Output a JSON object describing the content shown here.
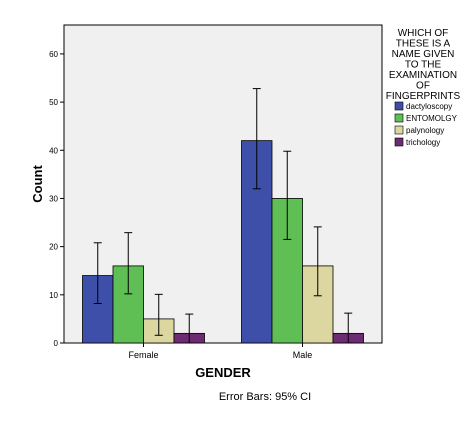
{
  "chart_data": {
    "type": "bar",
    "xlabel": "GENDER",
    "ylabel": "Count",
    "categories": [
      "Female",
      "Male"
    ],
    "ylim": [
      0,
      66
    ],
    "yticks": [
      0,
      10,
      20,
      30,
      40,
      50,
      60
    ],
    "grid": false,
    "legend_placement": "right",
    "legend_title": "WHICH OF THESE IS A NAME GIVEN TO THE EXAMINATION OF FINGERPRINTS",
    "legend_title_lines": [
      "WHICH OF",
      "THESE IS A",
      "NAME GIVEN",
      "TO THE",
      "EXAMINATION",
      "OF",
      "FINGERPRINTS"
    ],
    "footnote": "Error Bars: 95% CI",
    "series": [
      {
        "name": "dactyloscopy",
        "color": "#3d4fa8",
        "values": [
          14,
          42
        ],
        "ci_low": [
          8.2,
          32.0
        ],
        "ci_high": [
          20.8,
          52.8
        ]
      },
      {
        "name": "ENTOMOLGY",
        "color": "#5fbf55",
        "values": [
          16,
          30
        ],
        "ci_low": [
          10.2,
          21.5
        ],
        "ci_high": [
          22.9,
          39.8
        ]
      },
      {
        "name": "palynology",
        "color": "#dcd6a0",
        "values": [
          5,
          16
        ],
        "ci_low": [
          1.6,
          9.8
        ],
        "ci_high": [
          10.1,
          24.1
        ]
      },
      {
        "name": "trichology",
        "color": "#6d2b73",
        "values": [
          2,
          2
        ],
        "ci_low": [
          0,
          0
        ],
        "ci_high": [
          6.0,
          6.2
        ]
      }
    ]
  }
}
